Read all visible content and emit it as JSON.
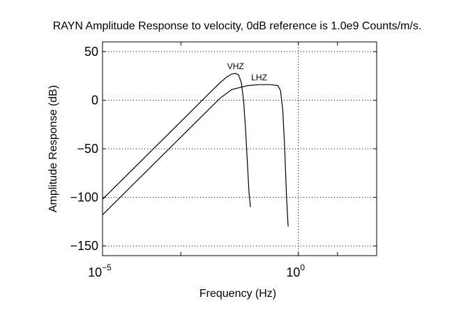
{
  "chart_data": {
    "type": "line",
    "title": "RAYN Amplitude Response to velocity, 0dB reference is 1.0e9 Counts/m/s.",
    "xlabel": "Frequency (Hz)",
    "ylabel": "Amplitude Response (dB)",
    "xscale": "log",
    "xlim": [
      1e-05,
      100
    ],
    "ylim": [
      -160,
      60
    ],
    "grid": true,
    "x_ticks": [
      {
        "value": 1e-05,
        "base": "10",
        "exponent": "−5"
      },
      {
        "value": 1,
        "base": "10",
        "exponent": "0"
      }
    ],
    "y_ticks": [
      {
        "value": 50,
        "label": "50"
      },
      {
        "value": 0,
        "label": "0"
      },
      {
        "value": -50,
        "label": "−50"
      },
      {
        "value": -100,
        "label": "−100"
      },
      {
        "value": -150,
        "label": "−150"
      }
    ],
    "series": [
      {
        "name": "VHZ",
        "x": [
          1e-05,
          0.0001,
          0.001,
          0.005,
          0.01,
          0.015,
          0.02,
          0.025,
          0.03,
          0.035,
          0.04,
          0.045,
          0.05,
          0.055,
          0.06
        ],
        "y": [
          -102,
          -62,
          -22,
          6,
          18,
          24,
          27,
          27.5,
          26,
          18,
          0,
          -30,
          -65,
          -95,
          -110
        ]
      },
      {
        "name": "LHZ",
        "x": [
          1e-05,
          0.0001,
          0.001,
          0.005,
          0.01,
          0.02,
          0.05,
          0.1,
          0.2,
          0.3,
          0.35,
          0.4,
          0.45,
          0.5,
          0.55
        ],
        "y": [
          -118,
          -78,
          -38,
          -10,
          2,
          11,
          15,
          16,
          16,
          15,
          10,
          -10,
          -50,
          -100,
          -130
        ]
      }
    ]
  }
}
